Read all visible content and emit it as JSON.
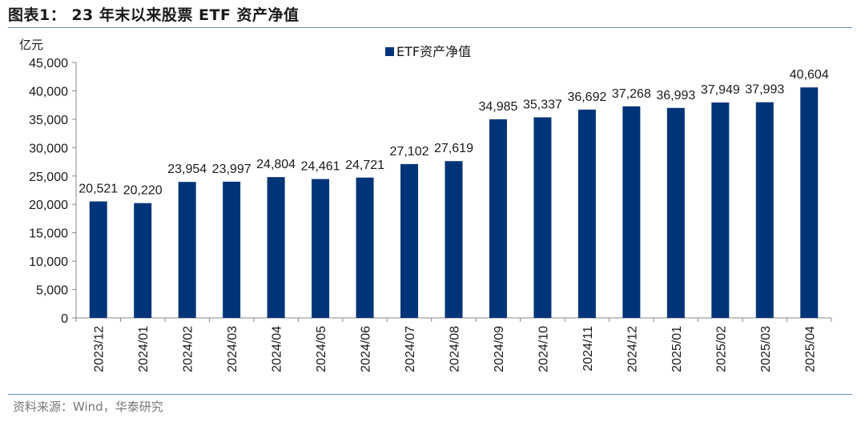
{
  "figure": {
    "title": "图表1： 23 年末以来股票 ETF 资产净值",
    "source": "资料来源：Wind，华泰研究"
  },
  "chart_data": {
    "type": "bar",
    "ylabel": "亿元",
    "ylim": [
      0,
      45000
    ],
    "yticks": [
      0,
      5000,
      10000,
      15000,
      20000,
      25000,
      30000,
      35000,
      40000,
      45000
    ],
    "ytick_labels": [
      "0",
      "5,000",
      "10,000",
      "15,000",
      "20,000",
      "25,000",
      "30,000",
      "35,000",
      "40,000",
      "45,000"
    ],
    "categories": [
      "2023/12",
      "2024/01",
      "2024/02",
      "2024/03",
      "2024/04",
      "2024/05",
      "2024/06",
      "2024/07",
      "2024/08",
      "2024/09",
      "2024/10",
      "2024/11",
      "2024/12",
      "2025/01",
      "2025/02",
      "2025/03",
      "2025/04"
    ],
    "series": [
      {
        "name": "ETF资产净值",
        "color": "#003478",
        "values": [
          20521,
          20220,
          23954,
          23997,
          24804,
          24461,
          24721,
          27102,
          27619,
          34985,
          35337,
          36692,
          37268,
          36993,
          37949,
          37993,
          40604
        ],
        "labels": [
          "20,521",
          "20,220",
          "23,954",
          "23,997",
          "24,804",
          "24,461",
          "24,721",
          "27,102",
          "27,619",
          "34,985",
          "35,337",
          "36,692",
          "37,268",
          "36,993",
          "37,949",
          "37,993",
          "40,604"
        ]
      }
    ],
    "grid": false,
    "legend_position": "top-center"
  }
}
